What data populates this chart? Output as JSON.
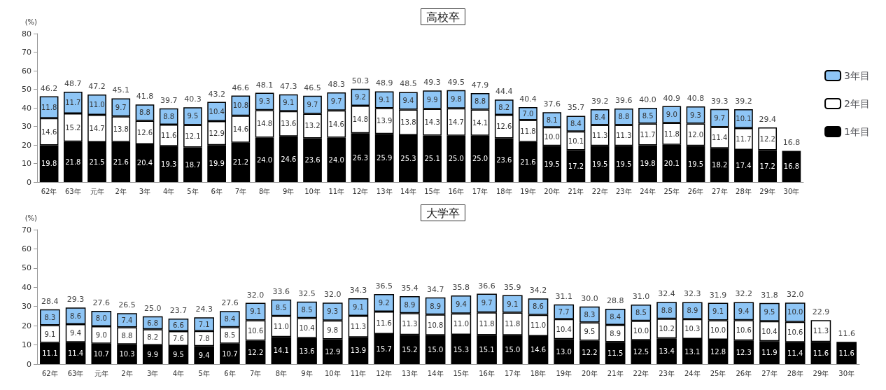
{
  "chart_data": [
    {
      "type": "bar",
      "title": "高校卒",
      "ylabel": "(%)",
      "stacked": true,
      "legend": "right",
      "ylim": [
        0,
        80
      ],
      "yticks": [
        0,
        10,
        20,
        30,
        40,
        50,
        60,
        70,
        80
      ],
      "categories": [
        "62年",
        "63年",
        "元年",
        "2年",
        "3年",
        "4年",
        "5年",
        "6年",
        "7年",
        "8年",
        "9年",
        "10年",
        "11年",
        "12年",
        "13年",
        "14年",
        "15年",
        "16年",
        "17年",
        "18年",
        "19年",
        "20年",
        "21年",
        "22年",
        "23年",
        "24年",
        "25年",
        "26年",
        "27年",
        "28年",
        "29年",
        "30年"
      ],
      "series": [
        {
          "name": "1年目",
          "color": "#000000",
          "values": [
            19.8,
            21.8,
            21.5,
            21.6,
            20.4,
            19.3,
            18.7,
            19.9,
            21.2,
            24.0,
            24.6,
            23.6,
            24.0,
            26.3,
            25.9,
            25.3,
            25.1,
            25.0,
            25.0,
            23.6,
            21.6,
            19.5,
            17.2,
            19.5,
            19.5,
            19.8,
            20.1,
            19.5,
            18.2,
            17.4,
            17.2,
            16.8
          ],
          "value_labels": [
            "19.8",
            "21.8",
            "21.5",
            "21.6",
            "20.4",
            "19.3",
            "18.7",
            "19.9",
            "21.2",
            "24.0",
            "24.6",
            "23.6",
            "24.0",
            "26.3",
            "25.9",
            "25.3",
            "25.1",
            "25.0",
            "25.0",
            "23.6",
            "21.6",
            "19.5",
            "17.2",
            "19.5",
            "19.5",
            "19.8",
            "20.1",
            "19.5",
            "18.2",
            "17.4",
            "17.2",
            "16.8"
          ]
        },
        {
          "name": "2年目",
          "color": "#ffffff",
          "values": [
            14.6,
            15.2,
            14.7,
            13.8,
            12.6,
            11.6,
            12.1,
            12.9,
            14.6,
            14.8,
            13.6,
            13.2,
            14.6,
            14.8,
            13.9,
            13.8,
            14.3,
            14.7,
            14.1,
            12.6,
            11.8,
            10.0,
            10.1,
            11.3,
            11.3,
            11.7,
            11.8,
            12.0,
            11.4,
            11.7,
            12.2,
            null
          ],
          "value_labels": [
            "14.6",
            "15.2",
            "14.7",
            "13.8",
            "12.6",
            "11.6",
            "12.1",
            "12.9",
            "14.6",
            "14.8",
            "13.6",
            "13.2",
            "14.6",
            "14.8",
            "13.9",
            "13.8",
            "14.3",
            "14.7",
            "14.1",
            "12.6",
            "11.8",
            "10.0",
            "10.1",
            "11.3",
            "11.3",
            "11.7",
            "11.8",
            "12.0",
            "11.4",
            "11.7",
            "12.2",
            null
          ]
        },
        {
          "name": "3年目",
          "color": "#8ec5f5",
          "values": [
            11.8,
            11.7,
            11.0,
            9.7,
            8.8,
            8.8,
            9.5,
            10.4,
            10.8,
            9.3,
            9.1,
            9.7,
            9.7,
            9.2,
            9.1,
            9.4,
            9.9,
            9.8,
            8.8,
            8.2,
            7.0,
            8.1,
            8.4,
            8.4,
            8.8,
            8.5,
            9.0,
            9.3,
            9.7,
            10.1,
            null,
            null
          ],
          "value_labels": [
            "11.8",
            "11.7",
            "11.0",
            "9.7",
            "8.8",
            "8.8",
            "9.5",
            "10.4",
            "10.8",
            "9.3",
            "9.1",
            "9.7",
            "9.7",
            "9.2",
            "9.1",
            "9.4",
            "9.9",
            "9.8",
            "8.8",
            "8.2",
            "7.0",
            "8.1",
            "8.4",
            "8.4",
            "8.8",
            "8.5",
            "9.0",
            "9.3",
            "9.7",
            "10.1",
            null,
            null
          ]
        }
      ],
      "totals": [
        "46.2",
        "48.7",
        "47.2",
        "45.1",
        "41.8",
        "39.7",
        "40.3",
        "43.2",
        "46.6",
        "48.1",
        "47.3",
        "46.5",
        "48.3",
        "50.3",
        "48.9",
        "48.5",
        "49.3",
        "49.5",
        "47.9",
        "44.4",
        "40.4",
        "37.6",
        "35.7",
        "39.2",
        "39.6",
        "40.0",
        "40.9",
        "40.8",
        "39.3",
        "39.2",
        "29.4",
        "16.8"
      ]
    },
    {
      "type": "bar",
      "title": "大学卒",
      "ylabel": "(%)",
      "stacked": true,
      "ylim": [
        0,
        70
      ],
      "yticks": [
        0,
        10,
        20,
        30,
        40,
        50,
        60,
        70
      ],
      "categories": [
        "62年",
        "63年",
        "元年",
        "2年",
        "3年",
        "4年",
        "5年",
        "6年",
        "7年",
        "8年",
        "9年",
        "10年",
        "11年",
        "12年",
        "13年",
        "14年",
        "15年",
        "16年",
        "17年",
        "18年",
        "19年",
        "20年",
        "21年",
        "22年",
        "23年",
        "24年",
        "25年",
        "26年",
        "27年",
        "28年",
        "29年",
        "30年"
      ],
      "series": [
        {
          "color": "#000000",
          "values": [
            11.1,
            11.4,
            10.7,
            10.3,
            9.9,
            9.5,
            9.4,
            10.7,
            12.2,
            14.1,
            13.6,
            12.9,
            13.9,
            15.7,
            15.2,
            15.0,
            15.3,
            15.1,
            15.0,
            14.6,
            13.0,
            12.2,
            11.5,
            12.5,
            13.4,
            13.1,
            12.8,
            12.3,
            11.9,
            11.4,
            11.6,
            11.6
          ],
          "value_labels": [
            "11.1",
            "11.4",
            "10.7",
            "10.3",
            "9.9",
            "9.5",
            "9.4",
            "10.7",
            "12.2",
            "14.1",
            "13.6",
            "12.9",
            "13.9",
            "15.7",
            "15.2",
            "15.0",
            "15.3",
            "15.1",
            "15.0",
            "14.6",
            "13.0",
            "12.2",
            "11.5",
            "12.5",
            "13.4",
            "13.1",
            "12.8",
            "12.3",
            "11.9",
            "11.4",
            "11.6",
            "11.6"
          ]
        },
        {
          "color": "#ffffff",
          "values": [
            9.1,
            9.4,
            9.0,
            8.8,
            8.2,
            7.6,
            7.8,
            8.5,
            10.6,
            11.0,
            10.4,
            9.8,
            11.3,
            11.6,
            11.3,
            10.8,
            11.0,
            11.8,
            11.8,
            11.0,
            10.4,
            9.5,
            8.9,
            10.0,
            10.2,
            10.3,
            10.0,
            10.6,
            10.4,
            10.6,
            11.3,
            null
          ],
          "value_labels": [
            "9.1",
            "9.4",
            "9.0",
            "8.8",
            "8.2",
            "7.6",
            "7.8",
            "8.5",
            "10.6",
            "11.0",
            "10.4",
            "9.8",
            "11.3",
            "11.6",
            "11.3",
            "10.8",
            "11.0",
            "11.8",
            "11.8",
            "11.0",
            "10.4",
            "9.5",
            "8.9",
            "10.0",
            "10.2",
            "10.3",
            "10.0",
            "10.6",
            "10.4",
            "10.6",
            "11.3",
            null
          ]
        },
        {
          "color": "#8ec5f5",
          "values": [
            8.3,
            8.6,
            8.0,
            7.4,
            6.8,
            6.6,
            7.1,
            8.4,
            9.1,
            8.5,
            8.5,
            9.3,
            9.1,
            9.2,
            8.9,
            8.9,
            9.4,
            9.7,
            9.1,
            8.6,
            7.7,
            8.3,
            8.4,
            8.5,
            8.8,
            8.9,
            9.1,
            9.4,
            9.5,
            10.0,
            null,
            null
          ],
          "value_labels": [
            "8.3",
            "8.6",
            "8.0",
            "7.4",
            "6.8",
            "6.6",
            "7.1",
            "8.4",
            "9.1",
            "8.5",
            "8.5",
            "9.3",
            "9.1",
            "9.2",
            "8.9",
            "8.9",
            "9.4",
            "9.7",
            "9.1",
            "8.6",
            "7.7",
            "8.3",
            "8.4",
            "8.5",
            "8.8",
            "8.9",
            "9.1",
            "9.4",
            "9.5",
            "10.0",
            null,
            null
          ]
        }
      ],
      "totals": [
        "28.4",
        "29.3",
        "27.6",
        "26.5",
        "25.0",
        "23.7",
        "24.3",
        "27.6",
        "32.0",
        "33.6",
        "32.5",
        "32.0",
        "34.3",
        "36.5",
        "35.4",
        "34.7",
        "35.8",
        "36.6",
        "35.9",
        "34.2",
        "31.1",
        "30.0",
        "28.8",
        "31.0",
        "32.4",
        "32.3",
        "31.9",
        "32.2",
        "31.8",
        "32.0",
        "22.9",
        "11.6"
      ]
    }
  ]
}
